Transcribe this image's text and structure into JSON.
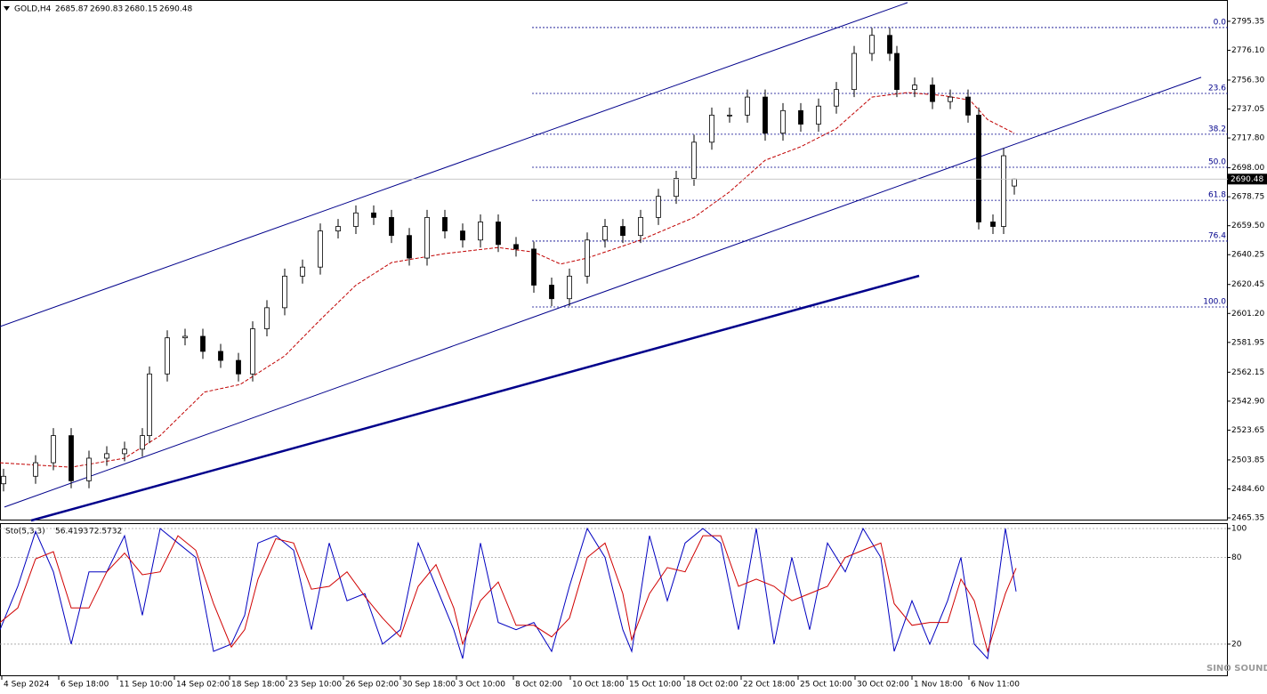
{
  "chart_data": [
    {
      "type": "candlestick",
      "title": "GOLD,H4",
      "x": [
        1,
        10,
        15,
        20,
        25,
        30,
        35,
        40,
        42,
        47,
        52,
        57,
        62,
        67,
        71,
        75,
        80,
        85,
        90,
        95,
        100,
        105,
        110,
        115,
        120,
        125,
        130,
        135,
        140,
        145,
        150,
        155,
        160,
        165,
        170,
        175,
        180,
        185,
        190,
        195,
        200,
        205,
        210,
        215,
        220,
        225,
        230,
        235,
        240,
        245,
        250,
        252,
        257,
        262,
        267,
        272,
        275,
        279,
        282,
        285
      ],
      "open": [
        2488,
        2493,
        2502,
        2520,
        2490,
        2505,
        2508,
        2511,
        2520,
        2561,
        2585,
        2586,
        2576,
        2570,
        2561,
        2591,
        2605,
        2626,
        2632,
        2656,
        2659,
        2668,
        2665,
        2653,
        2638,
        2665,
        2656,
        2650,
        2662,
        2647,
        2644,
        2620,
        2611,
        2626,
        2650,
        2659,
        2653,
        2665,
        2679,
        2691,
        2715,
        2733,
        2733,
        2745,
        2721,
        2736,
        2727,
        2739,
        2750,
        2774,
        2786,
        2774,
        2750,
        2753,
        2742,
        2745,
        2733,
        2662,
        2659,
        2685.87
      ],
      "high": [
        2498,
        2507,
        2525,
        2525,
        2510,
        2513,
        2516,
        2525,
        2566,
        2590,
        2591,
        2591,
        2581,
        2575,
        2596,
        2610,
        2631,
        2637,
        2661,
        2664,
        2673,
        2673,
        2670,
        2658,
        2670,
        2670,
        2661,
        2667,
        2667,
        2652,
        2649,
        2625,
        2631,
        2655,
        2664,
        2664,
        2670,
        2684,
        2696,
        2720,
        2738,
        2738,
        2750,
        2750,
        2741,
        2741,
        2744,
        2755,
        2779,
        2791,
        2791,
        2779,
        2758,
        2758,
        2750,
        2750,
        2738,
        2667,
        2711,
        2690.83
      ],
      "low": [
        2483,
        2488,
        2497,
        2485,
        2485,
        2500,
        2503,
        2506,
        2515,
        2556,
        2580,
        2571,
        2565,
        2556,
        2556,
        2586,
        2600,
        2621,
        2627,
        2651,
        2654,
        2660,
        2648,
        2633,
        2633,
        2651,
        2645,
        2645,
        2642,
        2639,
        2615,
        2606,
        2606,
        2621,
        2645,
        2648,
        2648,
        2660,
        2674,
        2686,
        2710,
        2728,
        2728,
        2716,
        2716,
        2722,
        2722,
        2734,
        2745,
        2769,
        2769,
        2745,
        2745,
        2737,
        2737,
        2728,
        2657,
        2654,
        2654,
        2680.15
      ],
      "close": [
        2493,
        2502,
        2520,
        2490,
        2505,
        2508,
        2511,
        2520,
        2561,
        2585,
        2586,
        2576,
        2570,
        2561,
        2591,
        2605,
        2626,
        2632,
        2656,
        2659,
        2668,
        2665,
        2653,
        2638,
        2665,
        2656,
        2650,
        2662,
        2647,
        2644,
        2620,
        2611,
        2626,
        2650,
        2659,
        2653,
        2665,
        2679,
        2691,
        2715,
        2733,
        2733,
        2745,
        2721,
        2736,
        2727,
        2739,
        2750,
        2774,
        2786,
        2774,
        2750,
        2753,
        2742,
        2745,
        2733,
        2662,
        2659,
        2706,
        2690.48
      ],
      "up_color": "#ffffff",
      "down_color": "#000000",
      "xlim": [
        0,
        345
      ],
      "xticks": [
        {
          "value": 0.5,
          "label": "4 Sep 2024"
        },
        {
          "value": 16.5,
          "label": "6 Sep 18:00"
        },
        {
          "value": 33,
          "label": "11 Sep 10:00"
        },
        {
          "value": 49,
          "label": "14 Sep 02:00"
        },
        {
          "value": 64.5,
          "label": "18 Sep 18:00"
        },
        {
          "value": 80.5,
          "label": "23 Sep 10:00"
        },
        {
          "value": 96.5,
          "label": "26 Sep 02:00"
        },
        {
          "value": 112.5,
          "label": "30 Sep 18:00"
        },
        {
          "value": 128.25,
          "label": "3 Oct 10:00"
        },
        {
          "value": 144.25,
          "label": "8 Oct 02:00"
        },
        {
          "value": 160.25,
          "label": "10 Oct 18:00"
        },
        {
          "value": 176.25,
          "label": "15 Oct 10:00"
        },
        {
          "value": 192.25,
          "label": "18 Oct 02:00"
        },
        {
          "value": 208.25,
          "label": "22 Oct 18:00"
        },
        {
          "value": 224.25,
          "label": "25 Oct 10:00"
        },
        {
          "value": 240.25,
          "label": "30 Oct 02:00"
        },
        {
          "value": 256.25,
          "label": "1 Nov 18:00"
        },
        {
          "value": 272.25,
          "label": "6 Nov 11:00"
        }
      ],
      "ylim": [
        2463.6,
        2809.5
      ],
      "yticks": [
        2795.35,
        {
          "value": 2776.1,
          "label": "2776.10"
        },
        {
          "value": 2756.3,
          "label": "2756.30"
        },
        2737.05,
        {
          "value": 2717.8,
          "label": "2717.80"
        },
        {
          "value": 2698,
          "label": "2698.00"
        },
        2678.75,
        {
          "value": 2659.5,
          "label": "2659.50"
        },
        2640.25,
        2620.45,
        {
          "value": 2601.2,
          "label": "2601.20"
        },
        2581.95,
        2562.15,
        {
          "value": 2542.9,
          "label": "2542.90"
        },
        2523.65,
        2503.85,
        {
          "value": 2484.6,
          "label": "2484.60"
        },
        2465.35
      ],
      "ma": {
        "color": "#c00000",
        "x": [
          0,
          20,
          35,
          45,
          57.5,
          67.5,
          80,
          90,
          100,
          110,
          125,
          140,
          150,
          157.5,
          165,
          180,
          195,
          205,
          215,
          225,
          235,
          245,
          255,
          265,
          272.5,
          277.5,
          285
        ],
        "values": [
          2502,
          2499,
          2505,
          2520,
          2549,
          2554,
          2573,
          2597,
          2620,
          2635,
          2641,
          2645,
          2642,
          2634,
          2638,
          2650,
          2665,
          2682,
          2703,
          2712,
          2724,
          2745,
          2748,
          2746,
          2743,
          2730,
          2721
        ]
      },
      "trendlines": [
        {
          "color": "#00008b",
          "width": 1,
          "x": [
            0,
            255
          ],
          "values": [
            2592.5,
            2807.8
          ]
        },
        {
          "color": "#00008b",
          "width": 1,
          "x": [
            1.25,
            337.5
          ],
          "values": [
            2472.5,
            2758.1
          ]
        },
        {
          "color": "#00008b",
          "width": 2.5,
          "x": [
            8.75,
            258.25
          ],
          "values": [
            2463.6,
            2626.2
          ]
        }
      ],
      "fibonacci_start_x": 149.5,
      "fibonacci": [
        {
          "level": "0.0",
          "price": 2791.2
        },
        {
          "level": "23.6",
          "price": 2747.4
        },
        {
          "level": "38.2",
          "price": 2720.3
        },
        {
          "level": "50.0",
          "price": 2698.35
        },
        {
          "level": "61.8",
          "price": 2676.4
        },
        {
          "level": "76.4",
          "price": 2649.3
        },
        {
          "level": "100.0",
          "price": 2605.5
        }
      ],
      "watermark": "SINO SOUND"
    },
    {
      "type": "line",
      "title": "Sto(5,3,3)",
      "xlim": [
        0,
        345
      ],
      "x": [
        0,
        5,
        10,
        15,
        20,
        25,
        30,
        35,
        40,
        45,
        50,
        55,
        60,
        65,
        68.75,
        72.5,
        77.5,
        82.5,
        87.5,
        92.5,
        97.5,
        102.5,
        107.5,
        112.5,
        117.5,
        122.5,
        127.5,
        130,
        135,
        140,
        145,
        150,
        155,
        160,
        165,
        170,
        175,
        177.5,
        182.5,
        187.5,
        192.5,
        197.5,
        202.5,
        207.5,
        212.5,
        217.5,
        222.5,
        227.5,
        232.5,
        237.5,
        242.5,
        247.5,
        251.25,
        256.25,
        261.25,
        266.25,
        270,
        273.75,
        277.5,
        282.5,
        285.5
      ],
      "series": [
        {
          "color": "#0000c0",
          "values": [
            30,
            60,
            98,
            70,
            20,
            70,
            70,
            95,
            40,
            100,
            90,
            80,
            15,
            20,
            40,
            90,
            95,
            85,
            30,
            90,
            50,
            55,
            20,
            30,
            90,
            60,
            30,
            10,
            90,
            35,
            30,
            35,
            15,
            60,
            100,
            80,
            30,
            15,
            95,
            50,
            90,
            100,
            90,
            30,
            100,
            20,
            80,
            30,
            90,
            70,
            100,
            80,
            15,
            50,
            20,
            50,
            80,
            20,
            10,
            100,
            56.4193
          ]
        },
        {
          "color": "#d00000",
          "values": [
            35,
            45,
            79,
            84,
            45,
            45,
            70,
            83,
            68,
            70,
            95,
            85,
            48,
            18,
            30,
            65,
            93,
            90,
            58,
            60,
            70,
            53,
            38,
            25,
            60,
            75,
            45,
            20,
            50,
            63,
            33,
            33,
            25,
            38,
            80,
            90,
            55,
            23,
            55,
            73,
            70,
            95,
            95,
            60,
            65,
            60,
            50,
            55,
            60,
            80,
            85,
            90,
            48,
            33,
            35,
            35,
            65,
            50,
            15,
            55,
            72.5732
          ]
        }
      ],
      "ylim": [
        -2.2,
        103.7
      ],
      "yticks": [
        100,
        80,
        20
      ],
      "grid": true
    }
  ]
}
